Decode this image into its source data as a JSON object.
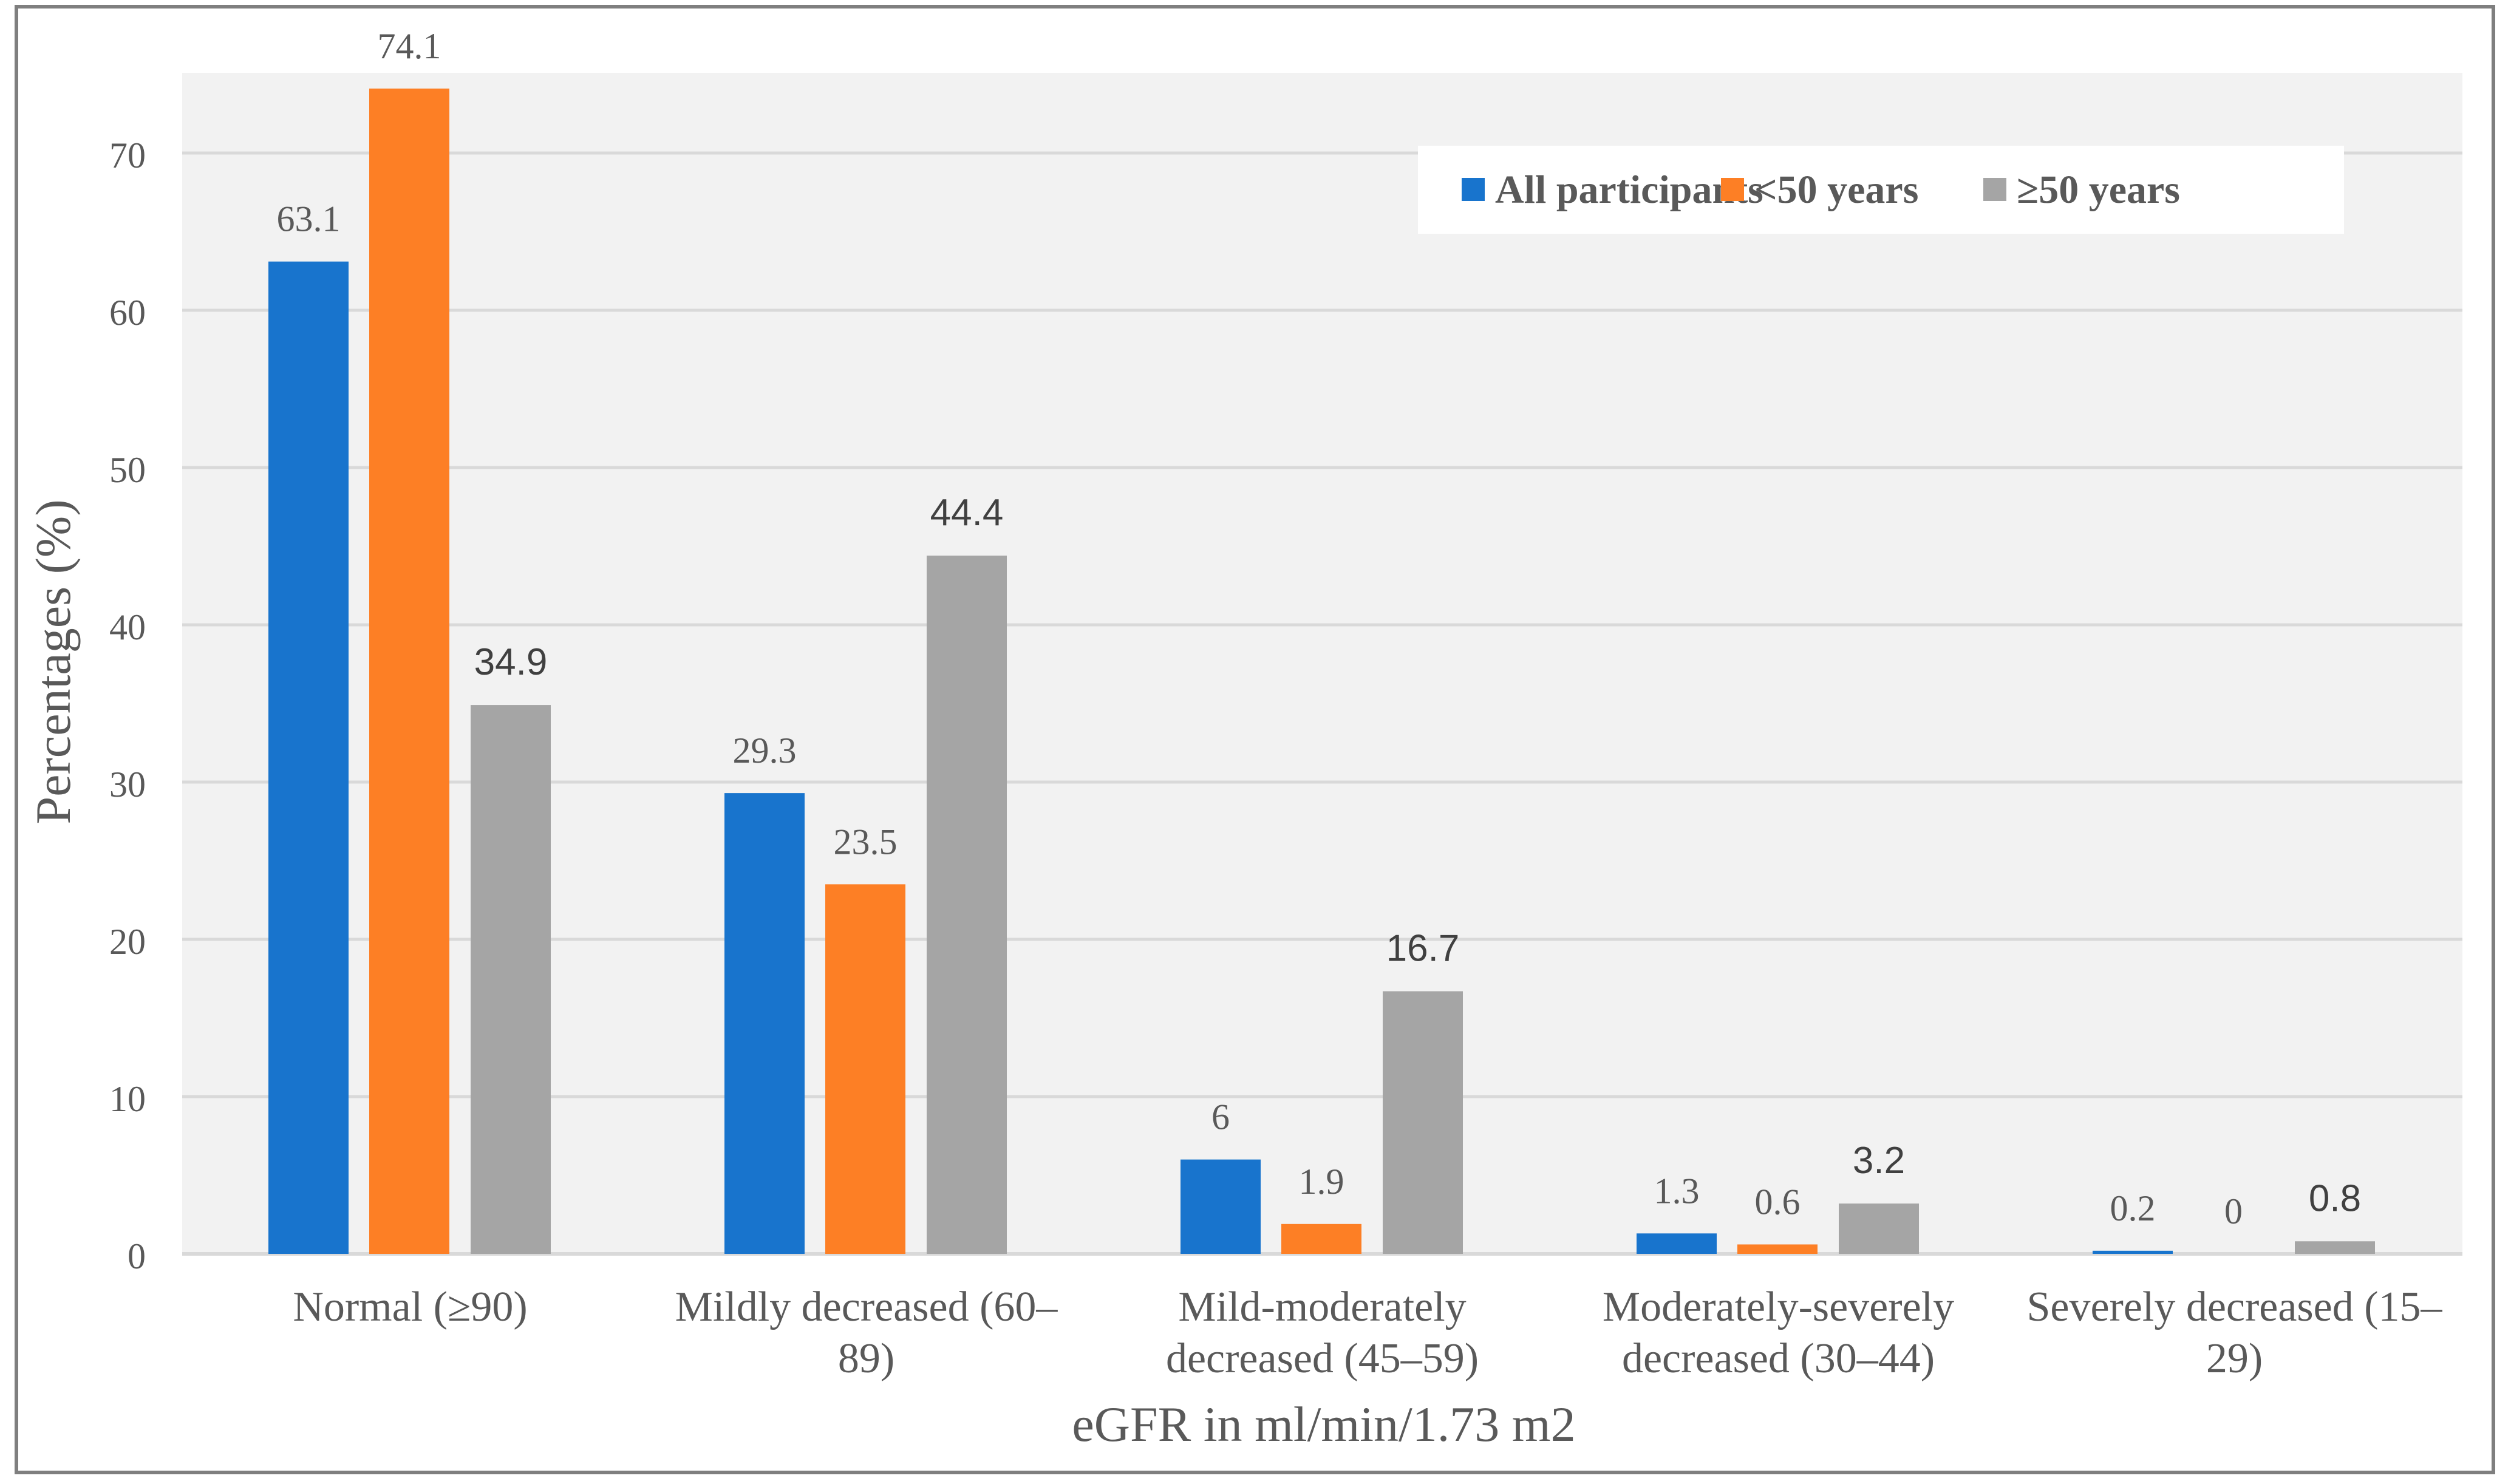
{
  "chart_data": {
    "type": "bar",
    "title": "",
    "xlabel": "eGFR in ml/min/1.73 m2",
    "ylabel": "Percentages (%)",
    "ylim": [
      0,
      75
    ],
    "yticks": [
      0,
      10,
      20,
      30,
      40,
      50,
      60,
      70
    ],
    "grid": true,
    "legend": "top-right",
    "categories": [
      [
        "Normal (≥90)"
      ],
      [
        "Mildly decreased (60–",
        "89)"
      ],
      [
        "Mild-moderately",
        "decreased (45–59)"
      ],
      [
        "Moderately-severely",
        "decreased (30–44)"
      ],
      [
        "Severely decreased (15–",
        "29)"
      ]
    ],
    "series": [
      {
        "name": "All participants",
        "color": "#1874cd",
        "values": [
          63.1,
          29.3,
          6,
          1.3,
          0.2
        ]
      },
      {
        "name": "<50 years",
        "color": "#fd7f25",
        "values": [
          74.1,
          23.5,
          1.9,
          0.6,
          0
        ]
      },
      {
        "name": "≥50 years",
        "color": "#a5a5a5",
        "values": [
          34.9,
          44.4,
          16.7,
          3.2,
          0.8
        ]
      }
    ],
    "colors": {
      "plot_background": "#f2f2f2",
      "gridline": "#d9d9d9",
      "text": "#595959"
    }
  }
}
